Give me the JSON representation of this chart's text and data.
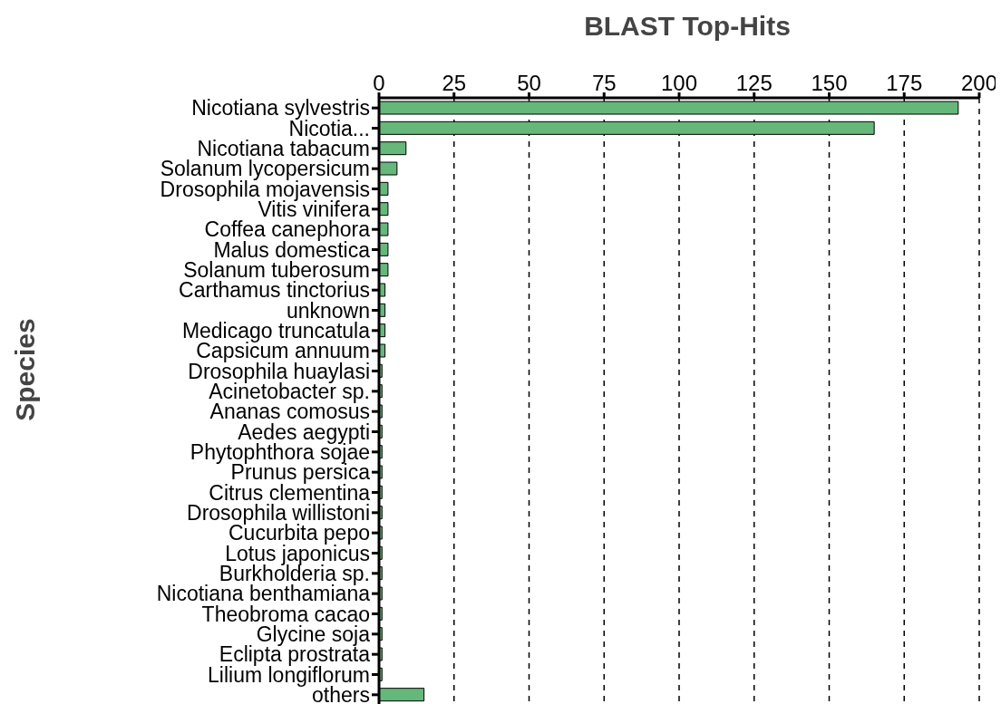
{
  "chart_data": {
    "type": "bar",
    "orientation": "horizontal",
    "title": "BLAST Top-Hits",
    "ylabel": "Species",
    "categories": [
      "Nicotiana sylvestris",
      "Nicotia...",
      "Nicotiana tabacum",
      "Solanum lycopersicum",
      "Drosophila mojavensis",
      "Vitis vinifera",
      "Coffea canephora",
      "Malus domestica",
      "Solanum tuberosum",
      "Carthamus tinctorius",
      "unknown",
      "Medicago truncatula",
      "Capsicum annuum",
      "Drosophila huaylasi",
      "Acinetobacter sp.",
      "Ananas comosus",
      "Aedes aegypti",
      "Phytophthora sojae",
      "Prunus persica",
      "Citrus clementina",
      "Drosophila willistoni",
      "Cucurbita pepo",
      "Lotus japonicus",
      "Burkholderia sp.",
      "Nicotiana benthamiana",
      "Theobroma cacao",
      "Glycine soja",
      "Eclipta prostrata",
      "Lilium longiflorum",
      "others"
    ],
    "values": [
      193,
      165,
      9,
      6,
      3,
      3,
      3,
      3,
      3,
      2,
      2,
      2,
      2,
      1,
      1,
      1,
      1,
      1,
      1,
      1,
      1,
      1,
      1,
      1,
      1,
      1,
      1,
      1,
      1,
      15
    ],
    "color": "#66b77a",
    "xlim": [
      0,
      200
    ],
    "xticks": [
      0,
      25,
      50,
      75,
      100,
      125,
      150,
      175,
      200
    ],
    "grid": "x",
    "line_style": "dashed"
  }
}
